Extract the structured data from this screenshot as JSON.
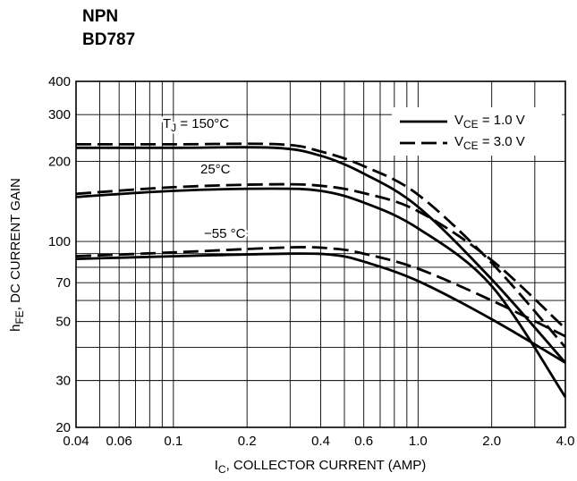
{
  "header": {
    "type": "NPN",
    "part": "BD787"
  },
  "chart_data": {
    "type": "line",
    "xscale": "log",
    "yscale": "log",
    "xlim": [
      0.04,
      4.0
    ],
    "ylim": [
      20,
      400
    ],
    "x_ticks": [
      0.04,
      0.06,
      0.1,
      0.2,
      0.4,
      0.6,
      1.0,
      2.0,
      4.0
    ],
    "x_tick_labels": [
      "0.04",
      "0.06",
      "0.1",
      "0.2",
      "0.4",
      "0.6",
      "1.0",
      "2.0",
      "4.0"
    ],
    "y_ticks": [
      20,
      30,
      50,
      70,
      100,
      200,
      300,
      400
    ],
    "y_tick_labels": [
      "20",
      "30",
      "50",
      "70",
      "100",
      "200",
      "300",
      "400"
    ],
    "xlabel": {
      "main": "I",
      "sub": "C",
      "rest": ", COLLECTOR CURRENT (AMP)"
    },
    "ylabel": {
      "main": "h",
      "sub": "FE",
      "rest": ", DC CURRENT GAIN"
    },
    "grid": true,
    "legend": {
      "position": "top-right",
      "entries": [
        {
          "main": "V",
          "sub": "CE",
          "rest": " = 1.0 V",
          "dash": "solid"
        },
        {
          "main": "V",
          "sub": "CE",
          "rest": " = 3.0 V",
          "dash": "dashed"
        }
      ]
    },
    "annotations": [
      {
        "main": "T",
        "sub": "J",
        "rest": " = 150°C"
      },
      {
        "main": "25°C",
        "sub": "",
        "rest": ""
      },
      {
        "main": "−55 °C",
        "sub": "",
        "rest": ""
      }
    ],
    "series": [
      {
        "temp": "150",
        "vce": "1.0",
        "dash": "solid",
        "x": [
          0.04,
          0.1,
          0.26,
          0.4,
          0.6,
          1.0,
          2.0,
          4.0
        ],
        "y": [
          225,
          225,
          225,
          210,
          180,
          135,
          72,
          35
        ]
      },
      {
        "temp": "150",
        "vce": "3.0",
        "dash": "dashed",
        "x": [
          0.04,
          0.1,
          0.27,
          0.4,
          0.6,
          1.0,
          2.0,
          4.0
        ],
        "y": [
          232,
          232,
          232,
          218,
          192,
          150,
          83,
          40
        ]
      },
      {
        "temp": "25",
        "vce": "1.0",
        "dash": "solid",
        "x": [
          0.04,
          0.1,
          0.25,
          0.4,
          0.6,
          1.0,
          2.0,
          4.0
        ],
        "y": [
          147,
          155,
          158,
          155,
          140,
          112,
          68,
          26
        ]
      },
      {
        "temp": "25",
        "vce": "3.0",
        "dash": "dashed",
        "x": [
          0.04,
          0.1,
          0.25,
          0.4,
          0.6,
          1.0,
          2.0,
          4.0
        ],
        "y": [
          151,
          160,
          164,
          162,
          152,
          130,
          85,
          47
        ]
      },
      {
        "temp": "-55",
        "vce": "1.0",
        "dash": "solid",
        "x": [
          0.04,
          0.1,
          0.3,
          0.45,
          0.6,
          1.0,
          2.0,
          4.0
        ],
        "y": [
          86,
          88,
          90,
          89,
          84,
          71,
          51,
          35
        ]
      },
      {
        "temp": "-55",
        "vce": "3.0",
        "dash": "dashed",
        "x": [
          0.04,
          0.1,
          0.3,
          0.45,
          0.6,
          1.0,
          2.0,
          4.0
        ],
        "y": [
          88,
          91,
          95,
          94,
          90,
          79,
          60,
          44
        ]
      }
    ]
  }
}
